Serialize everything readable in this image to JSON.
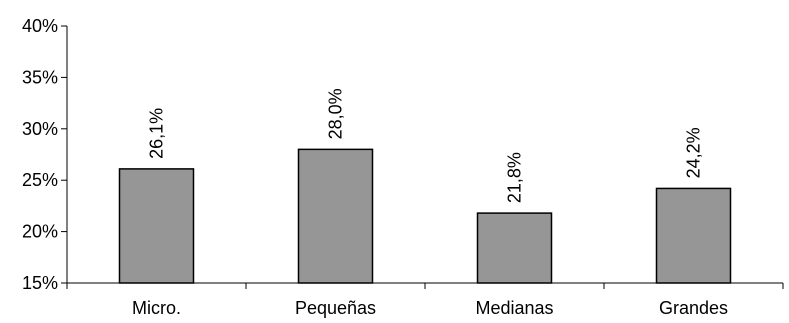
{
  "chart_data": {
    "type": "bar",
    "title": "",
    "xlabel": "",
    "ylabel": "",
    "categories": [
      "Micro.",
      "Pequeñas",
      "Medianas",
      "Grandes"
    ],
    "values": [
      26.1,
      28.0,
      21.8,
      24.2
    ],
    "value_labels": [
      "26,1%",
      "28,0%",
      "21,8%",
      "24,2%"
    ],
    "ylim": [
      15,
      40
    ],
    "y_ticks": [
      15,
      20,
      25,
      30,
      35,
      40
    ],
    "y_tick_labels": [
      "15%",
      "20%",
      "25%",
      "30%",
      "35%",
      "40%"
    ],
    "grid": false,
    "legend": "none",
    "bar_color": "#969696",
    "bar_edge_color": "#000000",
    "data_label_orientation": "vertical"
  }
}
